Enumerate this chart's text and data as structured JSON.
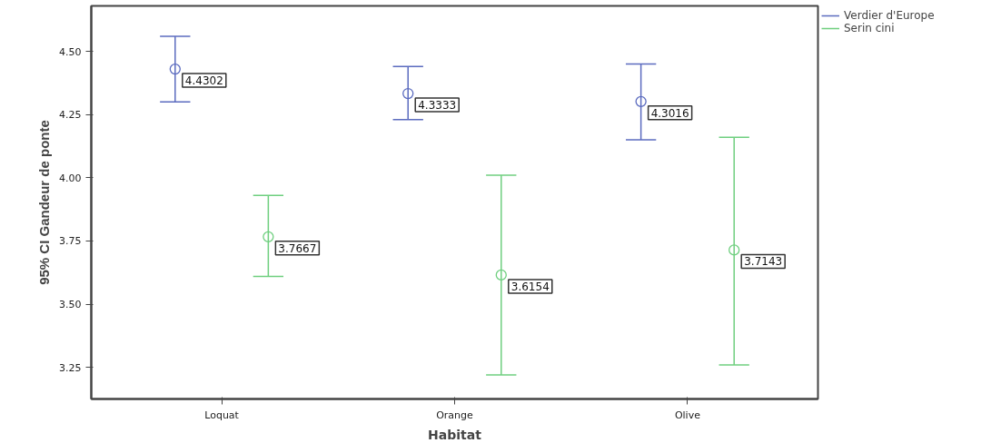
{
  "chart_data": {
    "type": "scatter",
    "xlabel": "Habitat",
    "ylabel": "95% CI Gandeur de ponte",
    "categories": [
      "Loquat",
      "Orange",
      "Olive"
    ],
    "series": [
      {
        "name": "Verdier d'Europe",
        "color": "#5b6bbf",
        "values": [
          4.4302,
          4.3333,
          4.3016
        ],
        "errors": [
          [
            4.3,
            4.56
          ],
          [
            4.23,
            4.44
          ],
          [
            4.15,
            4.45
          ]
        ]
      },
      {
        "name": "Serin cini",
        "color": "#6fcf7f",
        "values": [
          3.7667,
          3.6154,
          3.7143
        ],
        "errors": [
          [
            3.61,
            3.93
          ],
          [
            3.22,
            4.01
          ],
          [
            3.26,
            4.16
          ]
        ]
      }
    ],
    "ylim": [
      3.125,
      4.68
    ],
    "yticks": [
      {
        "value": 3.25,
        "label": "3.25"
      },
      {
        "value": 3.5,
        "label": "3.50"
      },
      {
        "value": 3.75,
        "label": "3.75"
      },
      {
        "value": 4.0,
        "label": "4.00"
      },
      {
        "value": 4.25,
        "label": "4.25"
      },
      {
        "value": 4.5,
        "label": "4.50"
      }
    ],
    "marker": "circle",
    "data_labels": true,
    "legend": "top right",
    "grid": false
  }
}
